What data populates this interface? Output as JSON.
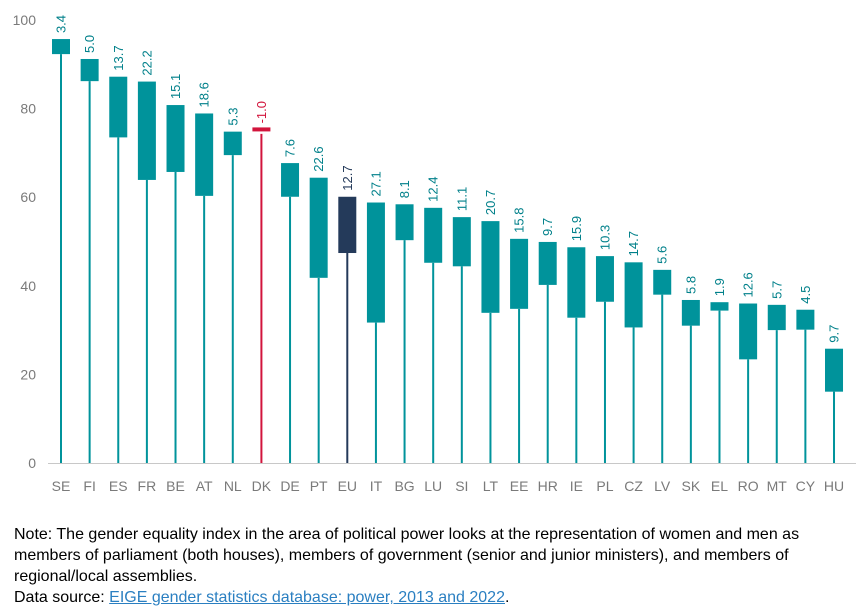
{
  "chart_data": {
    "type": "bar",
    "subtype": "range-bar",
    "ylim": [
      0,
      100
    ],
    "yticks": [
      0,
      20,
      40,
      60,
      80,
      100
    ],
    "grid": false,
    "categories": [
      "SE",
      "FI",
      "ES",
      "FR",
      "BE",
      "AT",
      "NL",
      "DK",
      "DE",
      "PT",
      "EU",
      "IT",
      "BG",
      "LU",
      "SI",
      "LT",
      "EE",
      "HR",
      "IE",
      "PL",
      "CZ",
      "LV",
      "SK",
      "EL",
      "RO",
      "MT",
      "CY",
      "HU"
    ],
    "value_2013": [
      92.3,
      86.2,
      73.5,
      63.9,
      65.7,
      60.3,
      69.5,
      75.3,
      60.1,
      41.8,
      47.4,
      31.7,
      50.3,
      45.2,
      44.4,
      33.9,
      34.8,
      40.2,
      32.8,
      36.4,
      30.6,
      38.0,
      31.0,
      34.4,
      23.4,
      30.0,
      30.1,
      16.1
    ],
    "value_2022": [
      95.7,
      91.2,
      87.2,
      86.1,
      80.8,
      78.9,
      74.8,
      74.3,
      67.7,
      64.4,
      60.1,
      58.8,
      58.4,
      57.6,
      55.5,
      54.6,
      50.6,
      49.9,
      48.7,
      46.7,
      45.3,
      43.6,
      36.8,
      36.3,
      36.0,
      35.7,
      34.6,
      25.8
    ],
    "labels": [
      "3.4",
      "5.0",
      "13.7",
      "22.2",
      "15.1",
      "18.6",
      "5.3",
      "-1.0",
      "7.6",
      "22.6",
      "12.7",
      "27.1",
      "8.1",
      "12.4",
      "11.1",
      "20.7",
      "15.8",
      "9.7",
      "15.9",
      "10.3",
      "14.7",
      "5.6",
      "5.8",
      "1.9",
      "12.6",
      "5.7",
      "4.5",
      "9.7"
    ],
    "highlight": {
      "EU": "#243a5a",
      "DK": "#d2143c"
    },
    "colors": {
      "default": "#00939b",
      "label": "#00808a",
      "axis_text": "#7a7a7a",
      "axis_line": "#c8c8c8"
    }
  },
  "note": {
    "text": "Note: The gender equality index in the area of political power looks at the representation of women and men as members of parliament (both houses), members of government (senior and junior ministers), and members of regional/local assemblies.",
    "source_label": "Data source: ",
    "source_link": "EIGE gender statistics database: power, 2013 and 2022",
    "source_end": "."
  }
}
